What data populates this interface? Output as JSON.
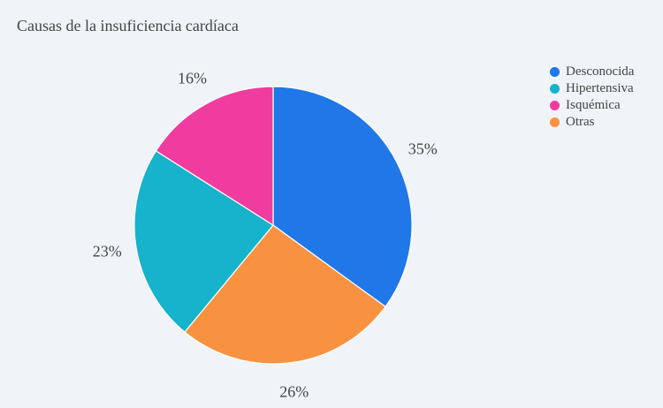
{
  "chart_data": {
    "type": "pie",
    "title": "Causas de la insuficiencia cardíaca",
    "categories": [
      "Desconocida",
      "Hipertensiva",
      "Isquémica",
      "Otras"
    ],
    "values": [
      35,
      23,
      16,
      26
    ],
    "labels": [
      "35%",
      "23%",
      "16%",
      "26%"
    ],
    "colors": [
      "#1f77e8",
      "#17b2cb",
      "#f03c9e",
      "#f99240"
    ],
    "slice_order": [
      "Desconocida",
      "Otras",
      "Hipertensiva",
      "Isquémica"
    ],
    "direction": "clockwise",
    "start_angle": "top",
    "legend_position": "top-right"
  }
}
